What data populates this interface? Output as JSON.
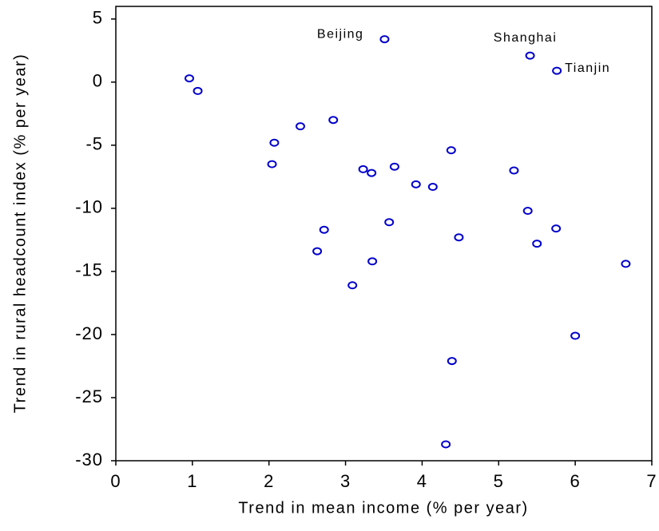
{
  "chart_data": {
    "type": "scatter",
    "xlabel": "Trend in mean income (% per year)",
    "ylabel": "Trend in rural headcount index (% per year)",
    "x": [
      0.96,
      1.07,
      2.41,
      2.84,
      2.07,
      2.04,
      3.51,
      5.41,
      5.76,
      4.38,
      3.23,
      3.34,
      3.64,
      3.92,
      4.14,
      5.2,
      5.38,
      5.75,
      5.5,
      4.48,
      3.57,
      2.72,
      2.63,
      3.35,
      3.09,
      6.66,
      6.0,
      4.39,
      4.31
    ],
    "values": [
      0.3,
      -0.7,
      -3.5,
      -3.0,
      -4.8,
      -6.5,
      3.4,
      2.1,
      0.9,
      -5.4,
      -6.9,
      -7.2,
      -6.7,
      -8.1,
      -8.3,
      -7.0,
      -10.2,
      -11.6,
      -12.8,
      -12.3,
      -11.1,
      -11.7,
      -13.4,
      -14.2,
      -16.1,
      -14.4,
      -20.1,
      -22.1,
      -28.7
    ],
    "point_labels": [
      null,
      null,
      null,
      null,
      null,
      null,
      "Beijing",
      "Shanghai",
      "Tianjin",
      null,
      null,
      null,
      null,
      null,
      null,
      null,
      null,
      null,
      null,
      null,
      null,
      null,
      null,
      null,
      null,
      null,
      null,
      null,
      null
    ],
    "color": "#0000cc",
    "xlim": [
      0,
      7
    ],
    "xticks": [
      0,
      1,
      2,
      3,
      4,
      5,
      6,
      7
    ],
    "ylim": [
      -30,
      6
    ],
    "yticks": [
      5,
      0,
      -5,
      -10,
      -15,
      -20,
      -25,
      -30
    ]
  }
}
